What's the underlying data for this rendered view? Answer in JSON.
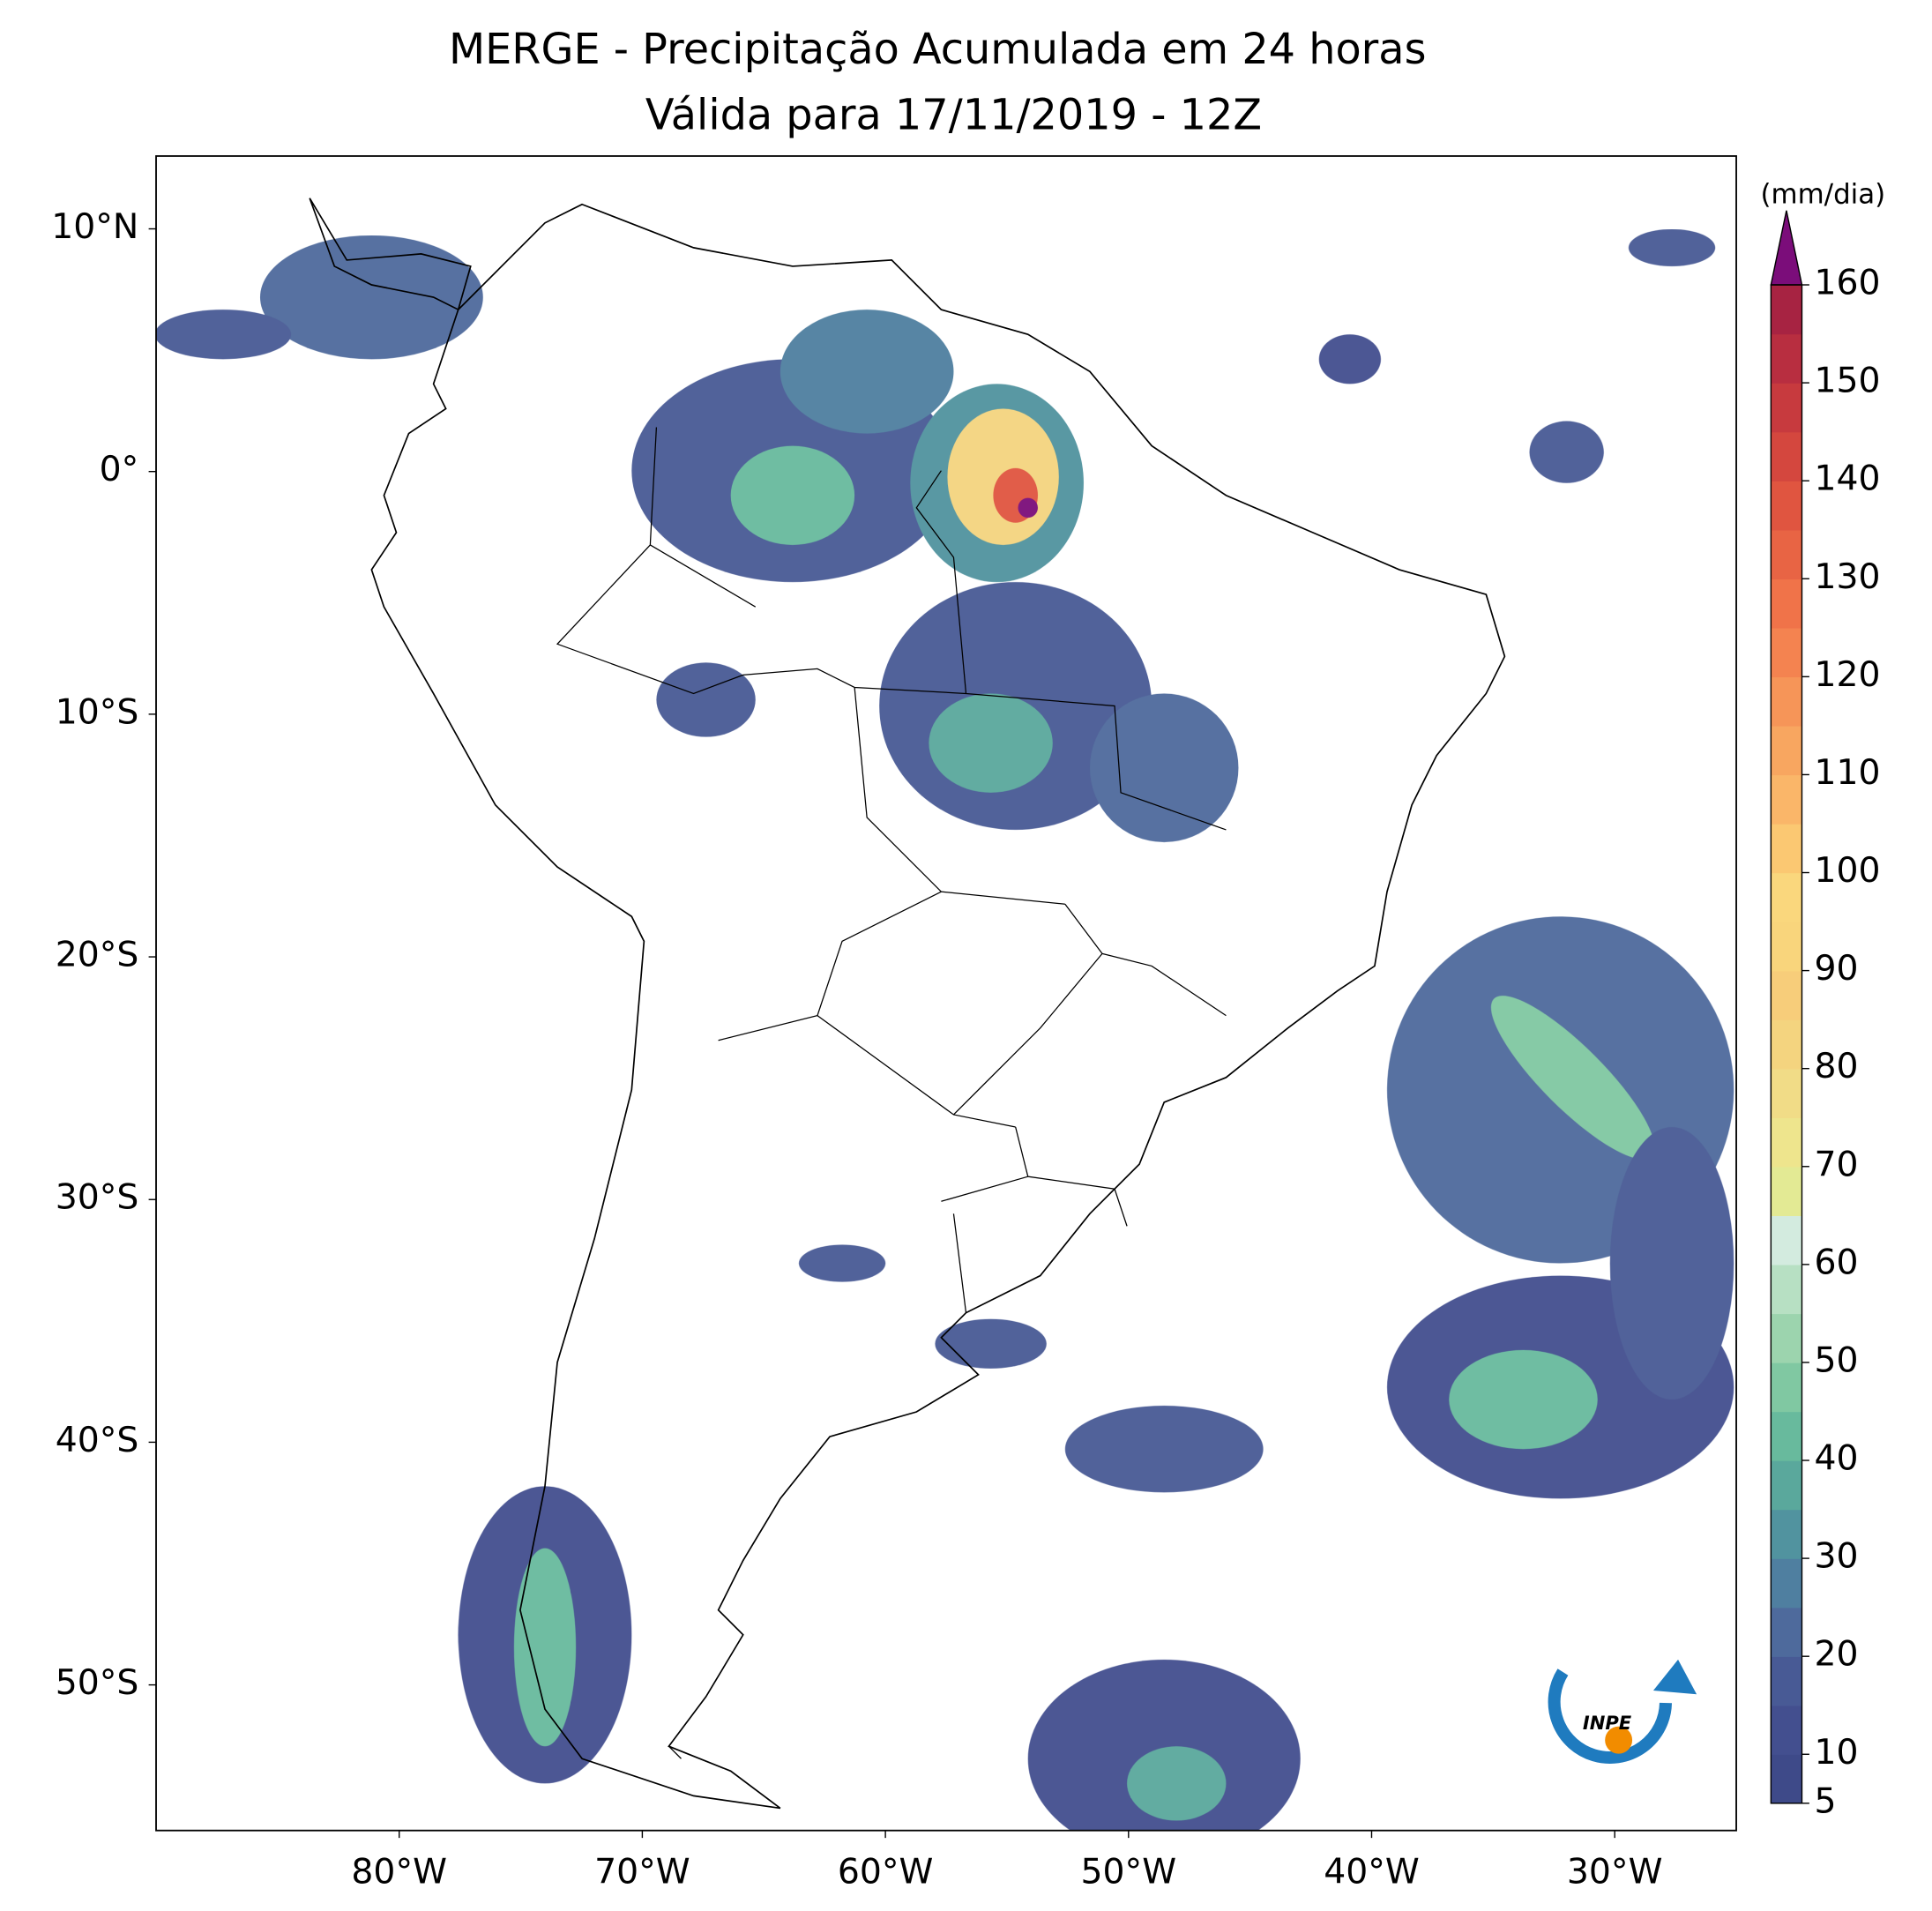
{
  "chart_data": {
    "type": "map",
    "title": "MERGE - Precipitação Acumulada em 24 horas",
    "subtitle": "Válida para 17/11/2019 - 12Z",
    "xlim": [
      -90,
      -25
    ],
    "ylim": [
      -56,
      13
    ],
    "xticks": [
      {
        "value": -80,
        "label": "80°W"
      },
      {
        "value": -70,
        "label": "70°W"
      },
      {
        "value": -60,
        "label": "60°W"
      },
      {
        "value": -50,
        "label": "50°W"
      },
      {
        "value": -40,
        "label": "40°W"
      },
      {
        "value": -30,
        "label": "30°W"
      }
    ],
    "yticks": [
      {
        "value": 10,
        "label": "10°N"
      },
      {
        "value": 0,
        "label": "0°"
      },
      {
        "value": -10,
        "label": "10°S"
      },
      {
        "value": -20,
        "label": "20°S"
      },
      {
        "value": -30,
        "label": "30°S"
      },
      {
        "value": -40,
        "label": "40°S"
      },
      {
        "value": -50,
        "label": "50°S"
      }
    ],
    "colorbar": {
      "label": "(mm/dia)",
      "lim": [
        5,
        160
      ],
      "ticks": [
        5,
        10,
        20,
        30,
        40,
        50,
        60,
        70,
        80,
        90,
        100,
        110,
        120,
        130,
        140,
        150,
        160
      ],
      "colors": [
        "#3e4a89",
        "#434f8f",
        "#485a95",
        "#4e6a9c",
        "#4f7fa0",
        "#51939f",
        "#5aa89c",
        "#68ba9d",
        "#80c8a2",
        "#9cd4ae",
        "#b7e0c3",
        "#d3ebdf",
        "#e3ea94",
        "#eee58d",
        "#f1dc87",
        "#f4d47f",
        "#f7cd7a",
        "#f9d57c",
        "#fad77d",
        "#fbc872",
        "#fab669",
        "#f8a660",
        "#f69558",
        "#f48350",
        "#f07349",
        "#e86444",
        "#e05540",
        "#d4473e",
        "#c73a3e",
        "#b82e40",
        "#a72342"
      ],
      "extend_color": "#7b0d7a"
    },
    "logo": "INPE"
  }
}
